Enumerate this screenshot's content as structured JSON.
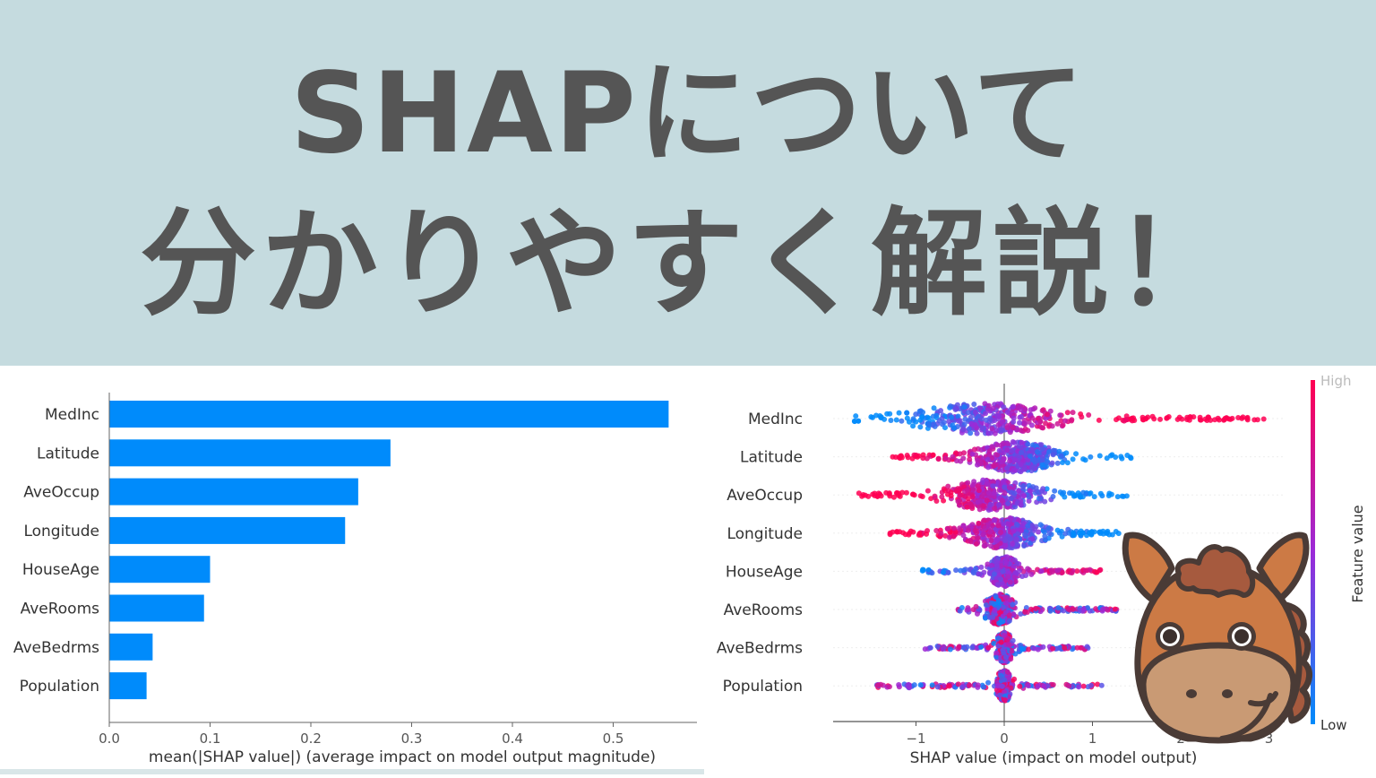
{
  "banner": {
    "title_line1": "SHAPについて",
    "title_line2": "分かりやすく解説！",
    "background_color": "#c5dbdf",
    "text_color": "#555555"
  },
  "mascot": {
    "icon": "horse-face-icon"
  },
  "chart_data": [
    {
      "type": "bar",
      "orientation": "horizontal",
      "title": "",
      "categories": [
        "MedInc",
        "Latitude",
        "AveOccup",
        "Longitude",
        "HouseAge",
        "AveRooms",
        "AveBedrms",
        "Population"
      ],
      "values": [
        0.555,
        0.279,
        0.247,
        0.234,
        0.1,
        0.094,
        0.043,
        0.037
      ],
      "xlabel": "mean(|SHAP value|) (average impact on model output magnitude)",
      "ylabel": "",
      "xticks": [
        "0.0",
        "0.1",
        "0.2",
        "0.3",
        "0.4",
        "0.5"
      ],
      "xlim": [
        0,
        0.58
      ],
      "grid": false,
      "bar_color": "#008bfb"
    },
    {
      "type": "scatter",
      "subtype": "beeswarm",
      "title": "",
      "categories": [
        "MedInc",
        "Latitude",
        "AveOccup",
        "Longitude",
        "HouseAge",
        "AveRooms",
        "AveBedrms",
        "Population"
      ],
      "series": [
        {
          "name": "MedInc",
          "min": -1.75,
          "max": 2.95,
          "center": -0.2,
          "spread": 0.55,
          "trend": "high value → positive"
        },
        {
          "name": "Latitude",
          "min": -1.3,
          "max": 1.45,
          "center": 0.15,
          "spread": 0.3,
          "trend": "high value → negative"
        },
        {
          "name": "AveOccup",
          "min": -1.65,
          "max": 1.5,
          "center": -0.15,
          "spread": 0.35,
          "trend": "high value → negative"
        },
        {
          "name": "Longitude",
          "min": -1.3,
          "max": 1.3,
          "center": 0.0,
          "spread": 0.3,
          "trend": "high value → negative"
        },
        {
          "name": "HouseAge",
          "min": -0.95,
          "max": 1.1,
          "center": 0.0,
          "spread": 0.1,
          "trend": "high value → positive"
        },
        {
          "name": "AveRooms",
          "min": -0.55,
          "max": 1.3,
          "center": -0.05,
          "spread": 0.1,
          "trend": "mixed"
        },
        {
          "name": "AveBedrms",
          "min": -0.9,
          "max": 0.95,
          "center": 0.0,
          "spread": 0.05,
          "trend": "mixed"
        },
        {
          "name": "Population",
          "min": -1.45,
          "max": 1.15,
          "center": 0.0,
          "spread": 0.05,
          "trend": "mixed"
        }
      ],
      "xlabel": "SHAP value (impact on model output)",
      "ylabel": "",
      "xticks": [
        "−1",
        "0",
        "1",
        "2",
        "3"
      ],
      "xlim": [
        -1.95,
        3.1
      ],
      "colorbar": {
        "label": "Feature value",
        "high_label": "High",
        "low_label": "Low",
        "high_color": "#ff0052",
        "low_color": "#008bfb"
      }
    }
  ]
}
